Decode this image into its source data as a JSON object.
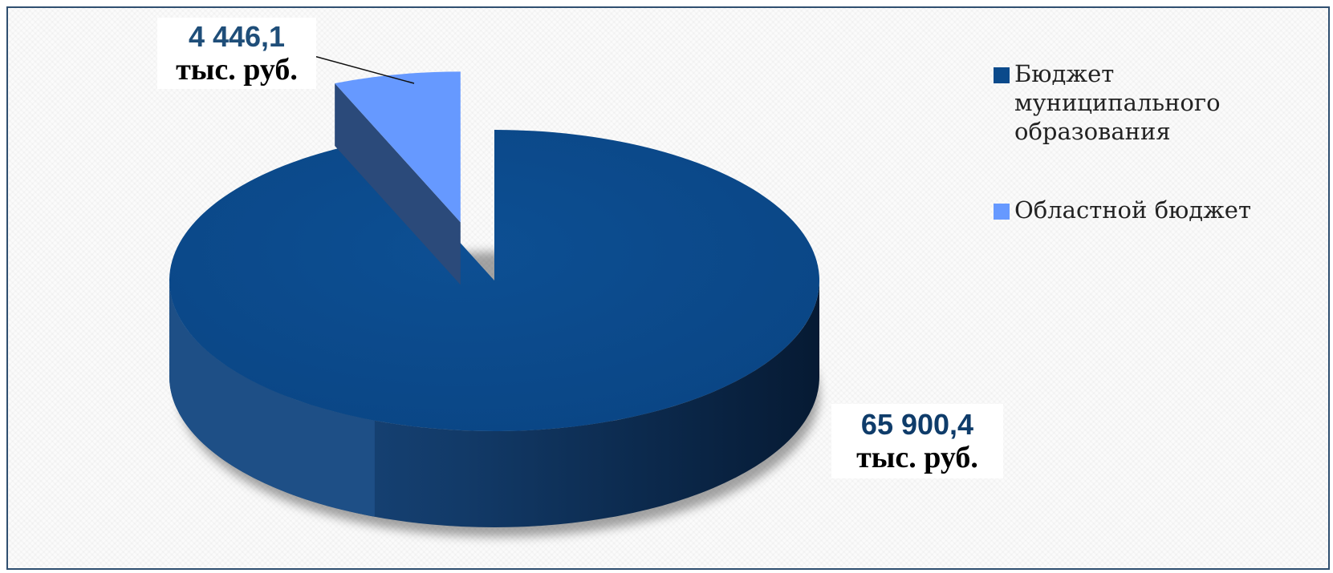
{
  "chart_data": {
    "type": "pie",
    "style": "3d-exploded",
    "slices": [
      {
        "name": "Бюджет муниципального образования",
        "value": 65900.4,
        "label_value": "65 900,4",
        "label_unit": "тыс. руб.",
        "color": "#0b4a8b",
        "label_color": "#0f3c6a"
      },
      {
        "name": "Областной бюджет",
        "value": 4446.1,
        "label_value": "4 446,1",
        "label_unit": "тыс. руб.",
        "color": "#6699ff",
        "label_color": "#1f4e79"
      }
    ],
    "legend_position": "right"
  }
}
